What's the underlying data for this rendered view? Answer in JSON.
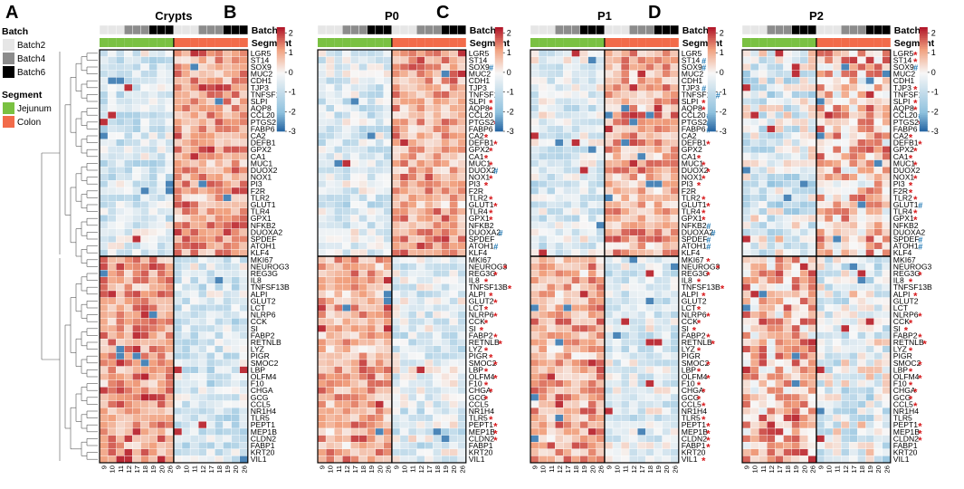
{
  "legend": {
    "batch_title": "Batch",
    "batch_items": [
      {
        "label": "Batch2",
        "color": "#e6e6e6"
      },
      {
        "label": "Batch4",
        "color": "#8c8c8c"
      },
      {
        "label": "Batch6",
        "color": "#000000"
      }
    ],
    "segment_title": "Segment",
    "segment_items": [
      {
        "label": "Jejunum",
        "color": "#7ac142"
      },
      {
        "label": "Colon",
        "color": "#f26b4a"
      }
    ]
  },
  "annotation_labels": {
    "batch": "Batch",
    "segment": "Segment"
  },
  "colorscale": {
    "colors": [
      "#1f5f9e",
      "#8fc1de",
      "#f7f7f7",
      "#f1a07e",
      "#b2182b"
    ],
    "ticks": [
      2,
      1,
      0,
      -1,
      -2,
      -3
    ],
    "range": [
      -3,
      2.3
    ]
  },
  "marker_colors": {
    "star": "#d7191c",
    "hash": "#1f78b4"
  },
  "chart_data": {
    "type": "heatmap",
    "row_split_after_index": 30,
    "sample_columns": {
      "batch": [
        "Batch2",
        "Batch2",
        "Batch2",
        "Batch4",
        "Batch4",
        "Batch4",
        "Batch6",
        "Batch6",
        "Batch6",
        "Batch2",
        "Batch2",
        "Batch2",
        "Batch4",
        "Batch4",
        "Batch4",
        "Batch6",
        "Batch6",
        "Batch6"
      ],
      "segment": [
        "Jejunum",
        "Jejunum",
        "Jejunum",
        "Jejunum",
        "Jejunum",
        "Jejunum",
        "Jejunum",
        "Jejunum",
        "Jejunum",
        "Colon",
        "Colon",
        "Colon",
        "Colon",
        "Colon",
        "Colon",
        "Colon",
        "Colon",
        "Colon"
      ]
    },
    "genes": [
      "LGR5",
      "ST14",
      "SOX9",
      "MUC2",
      "CDH1",
      "TJP3",
      "TNFSF13",
      "SLPI",
      "AQP8",
      "CCL20",
      "PTGS2",
      "FABP6",
      "CA2",
      "DEFB1",
      "GPX2",
      "CA1",
      "MUC1",
      "DUOX2",
      "NOX1",
      "PI3",
      "F2R",
      "TLR2",
      "GLUT1",
      "TLR4",
      "GPX1",
      "NFKB2",
      "DUOXA2",
      "SPDEF",
      "ATOH1",
      "KLF4",
      "MKI67",
      "NEUROG3",
      "REG3G",
      "IL8",
      "TNFSF13B",
      "ALPI",
      "GLUT2",
      "LCT",
      "NLRP6",
      "CCK",
      "SI",
      "FABP2",
      "RETNLB",
      "LYZ",
      "PIGR",
      "SMOC2",
      "LBP",
      "OLFM4",
      "F10",
      "CHGA",
      "GCG",
      "CCL5",
      "NR1H4",
      "TLR5",
      "PEPT1",
      "MEP1B",
      "CLDN2",
      "FABP1",
      "KRT20",
      "VIL1"
    ],
    "panels": [
      {
        "letter": "A",
        "title": "Crypts",
        "columns": [
          "9",
          "10",
          "11",
          "12",
          "17",
          "18",
          "19",
          "20",
          "26",
          "9",
          "10",
          "11",
          "12",
          "17",
          "18",
          "19",
          "20",
          "26"
        ],
        "markers": {}
      },
      {
        "letter": "B",
        "title": "P0",
        "columns": [
          "9",
          "10",
          "11",
          "12",
          "17",
          "18",
          "19",
          "20",
          "26",
          "9",
          "10",
          "11",
          "12",
          "17",
          "18",
          "19",
          "20",
          "26"
        ],
        "markers": {
          "SOX9": "#",
          "SLPI": "*",
          "AQP8": "*",
          "PTGS2": "*",
          "CA2": "*",
          "DEFB1": "*",
          "GPX2": "*",
          "CA1": "*",
          "MUC1": "*",
          "DUOX2": "#",
          "NOX1": "*",
          "PI3": "*",
          "TLR2": "*",
          "GLUT1": "*",
          "TLR4": "*",
          "GPX1": "*",
          "DUOXA2": "#",
          "ATOH1": "#",
          "NEUROG3": "*",
          "REG3G": "*",
          "IL8": "*",
          "TNFSF13B": "*",
          "ALPI": "*",
          "GLUT2": "*",
          "LCT": "*",
          "NLRP6": "*",
          "CCK": "*",
          "SI": "*",
          "FABP2": "*",
          "RETNLB": "*",
          "LYZ": "*",
          "PIGR": "*",
          "SMOC2": "*",
          "LBP": "*",
          "OLFM4": "*",
          "F10": "*",
          "CHGA": "*",
          "GCG": "*",
          "TLR5": "*",
          "PEPT1": "*",
          "MEP1B": "*",
          "CLDN2": "*"
        }
      },
      {
        "letter": "C",
        "title": "P1",
        "columns": [
          "9",
          "10",
          "11",
          "12",
          "17",
          "18",
          "19",
          "20",
          "26",
          "9",
          "10",
          "11",
          "12",
          "17",
          "18",
          "19",
          "20",
          "26"
        ],
        "markers": {
          "ST14": "#",
          "SOX9": "#",
          "TJP3": "#",
          "TNFSF13": "#",
          "SLPI": "*",
          "AQP8": "*",
          "CCL20": "#",
          "PTGS2": "#",
          "FABP6": "#",
          "DEFB1": "*",
          "CA1": "*",
          "MUC1": "*",
          "DUOX2": "*",
          "NOX1": "*",
          "PI3": "*",
          "TLR2": "*",
          "GLUT1": "*",
          "TLR4": "*",
          "GPX1": "*",
          "NFKB2": "#",
          "DUOXA2": "#",
          "SPDEF": "#",
          "ATOH1": "#",
          "MKI67": "*",
          "NEUROG3": "*",
          "REG3G": "*",
          "IL8": "*",
          "TNFSF13B": "*",
          "ALPI": "*",
          "LCT": "*",
          "NLRP6": "*",
          "CCK": "*",
          "SI": "*",
          "FABP2": "*",
          "RETNLB": "*",
          "LYZ": "*",
          "SMOC2": "*",
          "LBP": "*",
          "OLFM4": "*",
          "F10": "*",
          "CHGA": "*",
          "GCG": "*",
          "CCL5": "*",
          "TLR5": "*",
          "PEPT1": "*",
          "MEP1B": "*",
          "CLDN2": "*",
          "FABP1": "*",
          "VIL1": "*"
        }
      },
      {
        "letter": "D",
        "title": "P2",
        "columns": [
          "9",
          "10",
          "11",
          "12",
          "17",
          "18",
          "19",
          "20",
          "26",
          "9",
          "10",
          "11",
          "12",
          "17",
          "18",
          "19",
          "20",
          "26"
        ],
        "markers": {
          "LGR5": "*",
          "ST14": "*",
          "SOX9": "#",
          "TJP3": "*",
          "SLPI": "*",
          "AQP8": "*",
          "CCL20": "#",
          "PTGS2": "*",
          "CA2": "*",
          "DEFB1": "*",
          "GPX2": "*",
          "CA1": "*",
          "MUC1": "*",
          "NOX1": "*",
          "PI3": "*",
          "F2R": "*",
          "TLR2": "*",
          "GLUT1": "#",
          "TLR4": "*",
          "GPX1": "*",
          "SPDEF": "#",
          "ATOH1": "#",
          "REG3G": "*",
          "IL8": "*",
          "ALPI": "*",
          "NLRP6": "*",
          "CCK": "*",
          "SI": "*",
          "FABP2": "*",
          "RETNLB": "*",
          "LYZ": "*",
          "SMOC2": "*",
          "LBP": "*",
          "OLFM4": "*",
          "F10": "*",
          "CHGA": "*",
          "GCG": "*",
          "CCL5": "*",
          "PEPT1": "*",
          "MEP1B": "*",
          "CLDN2": "*"
        }
      }
    ]
  }
}
